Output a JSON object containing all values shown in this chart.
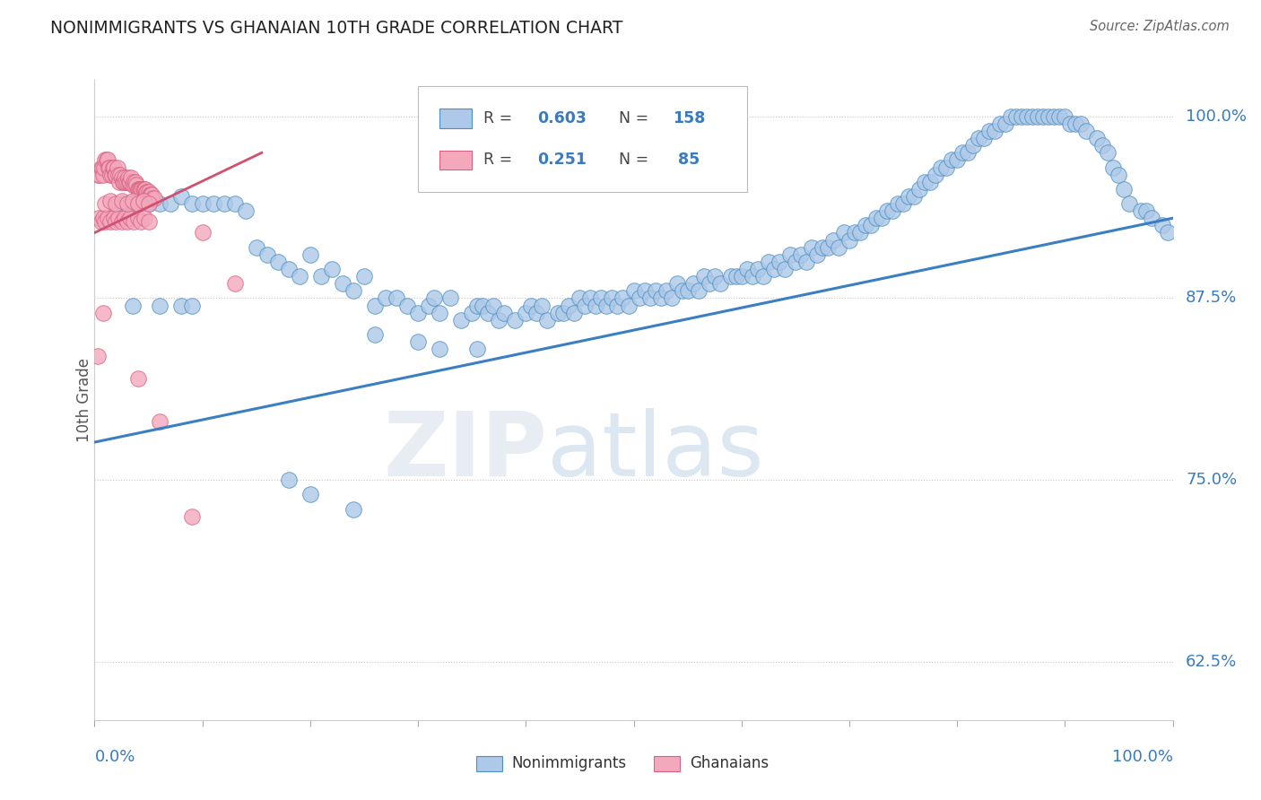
{
  "title": "NONIMMIGRANTS VS GHANAIAN 10TH GRADE CORRELATION CHART",
  "source": "Source: ZipAtlas.com",
  "ylabel": "10th Grade",
  "ylabel_right_labels": [
    "100.0%",
    "87.5%",
    "75.0%",
    "62.5%"
  ],
  "ylabel_right_values": [
    1.0,
    0.875,
    0.75,
    0.625
  ],
  "blue_color": "#adc8e8",
  "blue_edge_color": "#4a90c4",
  "blue_line_color": "#3a7fc1",
  "pink_color": "#f4a8bc",
  "pink_edge_color": "#d96080",
  "pink_line_color": "#d05070",
  "watermark_zip": "ZIP",
  "watermark_atlas": "atlas",
  "blue_line_x": [
    0.0,
    1.0
  ],
  "blue_line_y": [
    0.776,
    0.93
  ],
  "pink_line_x": [
    0.0,
    0.155
  ],
  "pink_line_y": [
    0.92,
    0.975
  ],
  "xlim": [
    0.0,
    1.0
  ],
  "ylim": [
    0.585,
    1.025
  ],
  "blue_scatter_x": [
    0.02,
    0.025,
    0.03,
    0.035,
    0.04,
    0.05,
    0.06,
    0.07,
    0.08,
    0.09,
    0.1,
    0.11,
    0.12,
    0.13,
    0.14,
    0.15,
    0.16,
    0.17,
    0.18,
    0.19,
    0.2,
    0.21,
    0.22,
    0.23,
    0.24,
    0.25,
    0.26,
    0.27,
    0.28,
    0.29,
    0.3,
    0.31,
    0.315,
    0.32,
    0.33,
    0.34,
    0.35,
    0.355,
    0.36,
    0.365,
    0.37,
    0.375,
    0.38,
    0.39,
    0.4,
    0.405,
    0.41,
    0.415,
    0.42,
    0.43,
    0.435,
    0.44,
    0.445,
    0.45,
    0.455,
    0.46,
    0.465,
    0.47,
    0.475,
    0.48,
    0.485,
    0.49,
    0.495,
    0.5,
    0.505,
    0.51,
    0.515,
    0.52,
    0.525,
    0.53,
    0.535,
    0.54,
    0.545,
    0.55,
    0.555,
    0.56,
    0.565,
    0.57,
    0.575,
    0.58,
    0.59,
    0.595,
    0.6,
    0.605,
    0.61,
    0.615,
    0.62,
    0.625,
    0.63,
    0.635,
    0.64,
    0.645,
    0.65,
    0.655,
    0.66,
    0.665,
    0.67,
    0.675,
    0.68,
    0.685,
    0.69,
    0.695,
    0.7,
    0.705,
    0.71,
    0.715,
    0.72,
    0.725,
    0.73,
    0.735,
    0.74,
    0.745,
    0.75,
    0.755,
    0.76,
    0.765,
    0.77,
    0.775,
    0.78,
    0.785,
    0.79,
    0.795,
    0.8,
    0.805,
    0.81,
    0.815,
    0.82,
    0.825,
    0.83,
    0.835,
    0.84,
    0.845,
    0.85,
    0.855,
    0.86,
    0.865,
    0.87,
    0.875,
    0.88,
    0.885,
    0.89,
    0.895,
    0.9,
    0.905,
    0.91,
    0.915,
    0.92,
    0.93,
    0.935,
    0.94,
    0.945,
    0.95,
    0.955,
    0.96,
    0.97,
    0.975,
    0.98,
    0.99,
    0.995,
    0.035,
    0.06,
    0.08,
    0.09,
    0.26,
    0.3,
    0.32,
    0.355,
    0.18,
    0.2,
    0.24
  ],
  "blue_scatter_y": [
    0.935,
    0.94,
    0.94,
    0.94,
    0.945,
    0.94,
    0.94,
    0.94,
    0.945,
    0.94,
    0.94,
    0.94,
    0.94,
    0.94,
    0.935,
    0.91,
    0.905,
    0.9,
    0.895,
    0.89,
    0.905,
    0.89,
    0.895,
    0.885,
    0.88,
    0.89,
    0.87,
    0.875,
    0.875,
    0.87,
    0.865,
    0.87,
    0.875,
    0.865,
    0.875,
    0.86,
    0.865,
    0.87,
    0.87,
    0.865,
    0.87,
    0.86,
    0.865,
    0.86,
    0.865,
    0.87,
    0.865,
    0.87,
    0.86,
    0.865,
    0.865,
    0.87,
    0.865,
    0.875,
    0.87,
    0.875,
    0.87,
    0.875,
    0.87,
    0.875,
    0.87,
    0.875,
    0.87,
    0.88,
    0.875,
    0.88,
    0.875,
    0.88,
    0.875,
    0.88,
    0.875,
    0.885,
    0.88,
    0.88,
    0.885,
    0.88,
    0.89,
    0.885,
    0.89,
    0.885,
    0.89,
    0.89,
    0.89,
    0.895,
    0.89,
    0.895,
    0.89,
    0.9,
    0.895,
    0.9,
    0.895,
    0.905,
    0.9,
    0.905,
    0.9,
    0.91,
    0.905,
    0.91,
    0.91,
    0.915,
    0.91,
    0.92,
    0.915,
    0.92,
    0.92,
    0.925,
    0.925,
    0.93,
    0.93,
    0.935,
    0.935,
    0.94,
    0.94,
    0.945,
    0.945,
    0.95,
    0.955,
    0.955,
    0.96,
    0.965,
    0.965,
    0.97,
    0.97,
    0.975,
    0.975,
    0.98,
    0.985,
    0.985,
    0.99,
    0.99,
    0.995,
    0.995,
    1.0,
    1.0,
    1.0,
    1.0,
    1.0,
    1.0,
    1.0,
    1.0,
    1.0,
    1.0,
    1.0,
    0.995,
    0.995,
    0.995,
    0.99,
    0.985,
    0.98,
    0.975,
    0.965,
    0.96,
    0.95,
    0.94,
    0.935,
    0.935,
    0.93,
    0.925,
    0.92,
    0.87,
    0.87,
    0.87,
    0.87,
    0.85,
    0.845,
    0.84,
    0.84,
    0.75,
    0.74,
    0.73
  ],
  "pink_scatter_x": [
    0.003,
    0.005,
    0.006,
    0.007,
    0.008,
    0.009,
    0.01,
    0.011,
    0.012,
    0.013,
    0.014,
    0.015,
    0.016,
    0.017,
    0.018,
    0.019,
    0.02,
    0.021,
    0.022,
    0.023,
    0.024,
    0.025,
    0.026,
    0.027,
    0.028,
    0.029,
    0.03,
    0.031,
    0.032,
    0.033,
    0.034,
    0.035,
    0.036,
    0.037,
    0.038,
    0.039,
    0.04,
    0.041,
    0.042,
    0.043,
    0.044,
    0.045,
    0.046,
    0.047,
    0.048,
    0.049,
    0.05,
    0.051,
    0.052,
    0.053,
    0.054,
    0.055,
    0.004,
    0.006,
    0.008,
    0.01,
    0.012,
    0.015,
    0.018,
    0.02,
    0.022,
    0.025,
    0.028,
    0.03,
    0.033,
    0.036,
    0.04,
    0.043,
    0.046,
    0.05,
    0.01,
    0.015,
    0.02,
    0.025,
    0.03,
    0.035,
    0.04,
    0.045,
    0.05,
    0.1,
    0.13,
    0.04,
    0.06,
    0.09,
    0.008,
    0.003
  ],
  "pink_scatter_y": [
    0.96,
    0.96,
    0.965,
    0.965,
    0.96,
    0.965,
    0.97,
    0.97,
    0.97,
    0.965,
    0.965,
    0.96,
    0.96,
    0.965,
    0.965,
    0.96,
    0.96,
    0.965,
    0.96,
    0.955,
    0.96,
    0.958,
    0.955,
    0.955,
    0.958,
    0.955,
    0.955,
    0.958,
    0.955,
    0.955,
    0.958,
    0.953,
    0.955,
    0.953,
    0.955,
    0.953,
    0.95,
    0.95,
    0.95,
    0.95,
    0.95,
    0.95,
    0.95,
    0.95,
    0.948,
    0.948,
    0.948,
    0.946,
    0.946,
    0.946,
    0.944,
    0.944,
    0.93,
    0.928,
    0.93,
    0.928,
    0.93,
    0.928,
    0.93,
    0.928,
    0.93,
    0.928,
    0.93,
    0.928,
    0.93,
    0.928,
    0.93,
    0.928,
    0.93,
    0.928,
    0.94,
    0.942,
    0.94,
    0.942,
    0.94,
    0.942,
    0.94,
    0.942,
    0.94,
    0.92,
    0.885,
    0.82,
    0.79,
    0.725,
    0.865,
    0.835
  ]
}
